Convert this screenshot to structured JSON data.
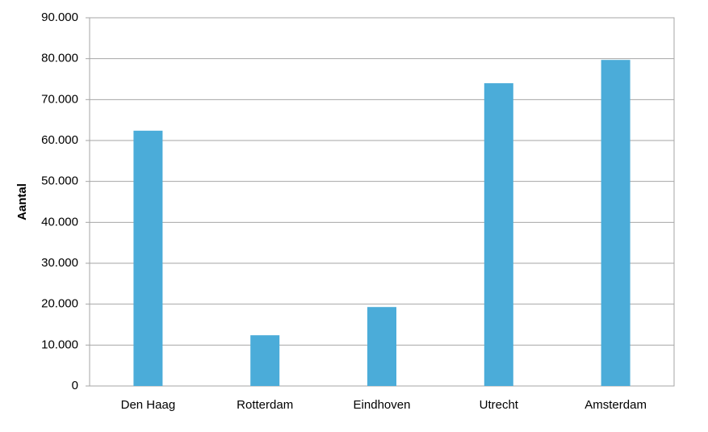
{
  "chart_data": {
    "type": "bar",
    "y_label": "Aantal",
    "categories": [
      "Den Haag",
      "Rotterdam",
      "Eindhoven",
      "Utrecht",
      "Amsterdam"
    ],
    "values": [
      62400,
      12400,
      19300,
      74000,
      79700
    ],
    "color": "#4bacd9",
    "ylim": [
      0,
      90000
    ],
    "yticks": [
      0,
      {
        "value": 10000,
        "label": "10.000"
      },
      {
        "value": 20000,
        "label": "20.000"
      },
      {
        "value": 30000,
        "label": "30.000"
      },
      {
        "value": 40000,
        "label": "40.000"
      },
      {
        "value": 50000,
        "label": "50.000"
      },
      {
        "value": 60000,
        "label": "60.000"
      },
      {
        "value": 70000,
        "label": "70.000"
      },
      {
        "value": 80000,
        "label": "80.000"
      },
      {
        "value": 90000,
        "label": "90.000"
      }
    ],
    "grid": true
  }
}
